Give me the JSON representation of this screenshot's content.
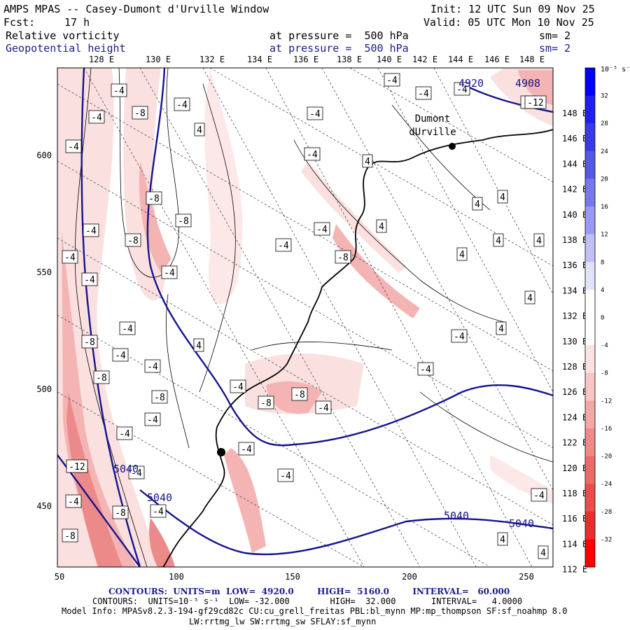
{
  "header": {
    "title": "AMPS MPAS -- Casey-Dumont d'Urville Window",
    "init": "Init: 12 UTC Sun 09 Nov 25",
    "fcst_label": "Fcst:",
    "fcst_value": "17 h",
    "valid": "Valid: 05 UTC Mon 10 Nov 25",
    "field1": "Relative vorticity",
    "field1_level": "at pressure =  500 hPa",
    "field1_sm": "sm= 2",
    "field2": "Geopotential height",
    "field2_level": "at pressure =  500 hPa",
    "field2_sm": "sm= 2"
  },
  "map": {
    "top_lon_labels": [
      "128 E",
      "130 E",
      "132 E",
      "134 E",
      "136 E",
      "138 E",
      "140 E",
      "142 E",
      "144 E",
      "146 E",
      "148 E"
    ],
    "right_lon_labels": [
      "148 E",
      "146 E",
      "144 E",
      "142 E",
      "140 E",
      "138 E",
      "136 E",
      "134 E",
      "132 E",
      "130 E",
      "128 E",
      "126 E",
      "124 E",
      "122 E",
      "120 E",
      "118 E",
      "116 E",
      "114 E",
      "112 E"
    ],
    "x_ticks": [
      "50",
      "100",
      "150",
      "200",
      "250"
    ],
    "y_ticks": [
      "600",
      "550",
      "500",
      "450"
    ],
    "station": [
      "Dumont",
      "dUrville"
    ],
    "height_labels": [
      "4920",
      "4908",
      "5040",
      "5040",
      "5040",
      "5040"
    ],
    "vort_labels": [
      "-4",
      "-8",
      "-12",
      "4"
    ],
    "colors": {
      "height_contour": "#14148c",
      "coast": "#000000",
      "vort_light": "#f9d6d6",
      "vort_mid": "#f2a8a8",
      "vort_strong": "#e88080"
    }
  },
  "colorbar": {
    "unit": "10⁻⁵ s⁻¹",
    "labels": [
      "32",
      "28",
      "24",
      "20",
      "16",
      "12",
      "8",
      "4",
      "0",
      "-4",
      "-8",
      "-12",
      "-16",
      "-20",
      "-24",
      "-28",
      "-32"
    ],
    "colors": [
      "#0000ff",
      "#2020ee",
      "#3a3ae6",
      "#5858e8",
      "#7878ee",
      "#9a9af2",
      "#c0c0f6",
      "#e2e2fb",
      "#ffffff",
      "#ffffff",
      "#fde2e2",
      "#f9c4c4",
      "#f5a6a6",
      "#f18888",
      "#ee6a6a",
      "#ec4c4c",
      "#ea2e2e",
      "#ff0000"
    ]
  },
  "footer": {
    "line1": "CONTOURS:  UNITS=m  LOW=  4920.0        HIGH=  5160.0        INTERVAL=   60.000",
    "line2": "CONTOURS:  UNITS=10⁻⁵ s⁻¹  LOW= -32.000        HIGH=  32.000       INTERVAL=   4.0000",
    "line3": "Model Info: MPASv8.2.3-194-gf29cd82c CU:cu_grell_freitas PBL:bl_mynn MP:mp_thompson SF:sf_noahmp 8.0",
    "line4": "LW:rrtmg_lw SW:rrtmg_sw SFLAY:sf_mynn"
  }
}
